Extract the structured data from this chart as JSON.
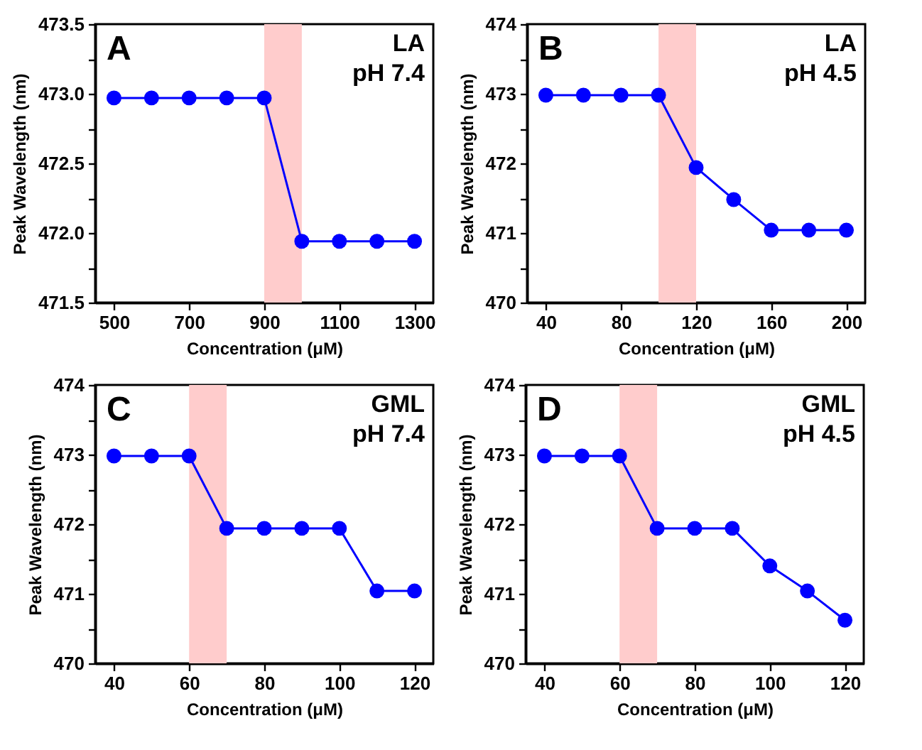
{
  "chart_data": [
    {
      "type": "line",
      "xlabel": "Concentration (μM)",
      "ylabel": "Peak Wavelength (nm)",
      "annotations": [
        "A",
        "LA",
        "pH 7.4"
      ],
      "x": [
        500,
        600,
        700,
        800,
        900,
        1000,
        1100,
        1200,
        1300
      ],
      "values": [
        472.97,
        472.97,
        472.97,
        472.97,
        472.97,
        471.94,
        471.94,
        471.94,
        471.94
      ],
      "color": "#0000ff",
      "xlim": [
        450,
        1350
      ],
      "xticks": [
        500,
        700,
        900,
        1100,
        1300
      ],
      "ylim": [
        471.5,
        473.5
      ],
      "yticks": [
        471.5,
        {
          "value": 471.75,
          "label": null
        },
        {
          "value": 472,
          "label": "472.0"
        },
        {
          "value": 472.25,
          "label": null
        },
        472.5,
        {
          "value": 472.75,
          "label": null
        },
        {
          "value": 473,
          "label": "473.0"
        },
        {
          "value": 473.25,
          "label": null
        },
        473.5
      ],
      "bands": [
        {
          "axis": "x",
          "from": 900,
          "to": 1000,
          "color": "#ffcccc"
        }
      ],
      "marker": "circle",
      "line_style": "solid"
    },
    {
      "type": "line",
      "xlabel": "Concentration (μM)",
      "ylabel": "Peak Wavelength (nm)",
      "annotations": [
        "B",
        "LA",
        "pH 4.5"
      ],
      "x": [
        40,
        60,
        80,
        100,
        120,
        140,
        160,
        180,
        200
      ],
      "values": [
        472.98,
        472.98,
        472.98,
        472.98,
        471.94,
        471.48,
        471.04,
        471.04,
        471.04
      ],
      "color": "#0000ff",
      "xlim": [
        30,
        210
      ],
      "xticks": [
        40,
        80,
        120,
        160,
        200
      ],
      "ylim": [
        470,
        474
      ],
      "yticks": [
        470,
        {
          "value": 470.5,
          "label": null
        },
        471,
        {
          "value": 471.5,
          "label": null
        },
        472,
        {
          "value": 472.5,
          "label": null
        },
        473,
        {
          "value": 473.5,
          "label": null
        },
        474
      ],
      "bands": [
        {
          "axis": "x",
          "from": 100,
          "to": 120,
          "color": "#ffcccc"
        }
      ],
      "marker": "circle",
      "line_style": "solid"
    },
    {
      "type": "line",
      "xlabel": "Concentration (μM)",
      "ylabel": "Peak Wavelength (nm)",
      "annotations": [
        "C",
        "GML",
        "pH 7.4"
      ],
      "x": [
        40,
        50,
        60,
        70,
        80,
        90,
        100,
        110,
        120
      ],
      "values": [
        472.98,
        472.98,
        472.98,
        471.94,
        471.94,
        471.94,
        471.94,
        471.04,
        471.04
      ],
      "color": "#0000ff",
      "xlim": [
        35,
        125
      ],
      "xticks": [
        40,
        60,
        80,
        100,
        120
      ],
      "ylim": [
        470,
        474
      ],
      "yticks": [
        470,
        {
          "value": 470.5,
          "label": null
        },
        471,
        {
          "value": 471.5,
          "label": null
        },
        472,
        {
          "value": 472.5,
          "label": null
        },
        473,
        {
          "value": 473.5,
          "label": null
        },
        474
      ],
      "bands": [
        {
          "axis": "x",
          "from": 60,
          "to": 70,
          "color": "#ffcccc"
        }
      ],
      "marker": "circle",
      "line_style": "solid"
    },
    {
      "type": "line",
      "xlabel": "Concentration (μM)",
      "ylabel": "Peak Wavelength (nm)",
      "annotations": [
        "D",
        "GML",
        "pH 4.5"
      ],
      "x": [
        40,
        50,
        60,
        70,
        80,
        90,
        100,
        110,
        120
      ],
      "values": [
        472.98,
        472.98,
        472.98,
        471.94,
        471.94,
        471.94,
        471.4,
        471.04,
        470.62
      ],
      "color": "#0000ff",
      "xlim": [
        35,
        125
      ],
      "xticks": [
        40,
        60,
        80,
        100,
        120
      ],
      "ylim": [
        470,
        474
      ],
      "yticks": [
        470,
        {
          "value": 470.5,
          "label": null
        },
        471,
        {
          "value": 471.5,
          "label": null
        },
        472,
        {
          "value": 472.5,
          "label": null
        },
        473,
        {
          "value": 473.5,
          "label": null
        },
        474
      ],
      "bands": [
        {
          "axis": "x",
          "from": 60,
          "to": 70,
          "color": "#ffcccc"
        }
      ],
      "marker": "circle",
      "line_style": "solid"
    }
  ]
}
